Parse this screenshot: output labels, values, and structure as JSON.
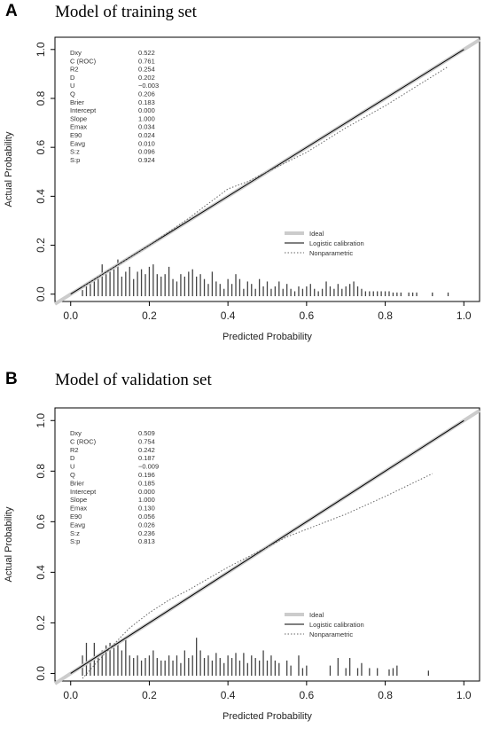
{
  "chart_data": [
    {
      "panel": "A",
      "title": "Model of training set",
      "type": "line",
      "xlabel": "Predicted Probability",
      "ylabel": "Actual Probability",
      "xlim": [
        -0.04,
        1.04
      ],
      "ylim": [
        -0.03,
        1.05
      ],
      "xticks": [
        "0.0",
        "0.2",
        "0.4",
        "0.6",
        "0.8",
        "1.0"
      ],
      "yticks": [
        "0.0",
        "0.2",
        "0.4",
        "0.6",
        "0.8",
        "1.0"
      ],
      "grid": false,
      "legend_position": "right-middle",
      "stats": [
        {
          "name": "Dxy",
          "value": "0.522"
        },
        {
          "name": "C (ROC)",
          "value": "0.761"
        },
        {
          "name": "R2",
          "value": "0.254"
        },
        {
          "name": "D",
          "value": "0.202"
        },
        {
          "name": "U",
          "value": "−0.003"
        },
        {
          "name": "Q",
          "value": "0.206"
        },
        {
          "name": "Brier",
          "value": "0.183"
        },
        {
          "name": "Intercept",
          "value": "0.000"
        },
        {
          "name": "Slope",
          "value": "1.000"
        },
        {
          "name": "Emax",
          "value": "0.034"
        },
        {
          "name": "E90",
          "value": "0.024"
        },
        {
          "name": "Eavg",
          "value": "0.010"
        },
        {
          "name": "S:z",
          "value": "0.096"
        },
        {
          "name": "S:p",
          "value": "0.924"
        }
      ],
      "series": [
        {
          "name": "Ideal",
          "style": "thick-gray",
          "color": "#cccccc",
          "x": [
            -0.04,
            1.04
          ],
          "y": [
            -0.04,
            1.04
          ]
        },
        {
          "name": "Logistic calibration",
          "style": "solid",
          "color": "#000000",
          "x": [
            0.0,
            1.0
          ],
          "y": [
            0.0,
            1.0
          ]
        },
        {
          "name": "Nonparametric",
          "style": "dotted",
          "color": "#666666",
          "x": [
            0.03,
            0.1,
            0.2,
            0.3,
            0.35,
            0.4,
            0.45,
            0.5,
            0.6,
            0.7,
            0.8,
            0.9,
            0.96
          ],
          "y": [
            0.03,
            0.1,
            0.2,
            0.31,
            0.37,
            0.43,
            0.46,
            0.5,
            0.58,
            0.68,
            0.77,
            0.87,
            0.93
          ]
        }
      ],
      "histogram": {
        "x": [
          0.03,
          0.04,
          0.05,
          0.06,
          0.07,
          0.08,
          0.09,
          0.1,
          0.11,
          0.12,
          0.13,
          0.14,
          0.15,
          0.16,
          0.17,
          0.18,
          0.19,
          0.2,
          0.21,
          0.22,
          0.23,
          0.24,
          0.25,
          0.26,
          0.27,
          0.28,
          0.29,
          0.3,
          0.31,
          0.32,
          0.33,
          0.34,
          0.35,
          0.36,
          0.37,
          0.38,
          0.39,
          0.4,
          0.41,
          0.42,
          0.43,
          0.44,
          0.45,
          0.46,
          0.47,
          0.48,
          0.49,
          0.5,
          0.51,
          0.52,
          0.53,
          0.54,
          0.55,
          0.56,
          0.57,
          0.58,
          0.59,
          0.6,
          0.61,
          0.62,
          0.63,
          0.64,
          0.65,
          0.66,
          0.67,
          0.68,
          0.69,
          0.7,
          0.71,
          0.72,
          0.73,
          0.74,
          0.75,
          0.76,
          0.77,
          0.78,
          0.79,
          0.8,
          0.81,
          0.82,
          0.83,
          0.84,
          0.86,
          0.87,
          0.88,
          0.92,
          0.96
        ],
        "h": [
          0.025,
          0.04,
          0.05,
          0.06,
          0.075,
          0.13,
          0.09,
          0.1,
          0.11,
          0.15,
          0.08,
          0.1,
          0.12,
          0.07,
          0.1,
          0.11,
          0.09,
          0.12,
          0.13,
          0.09,
          0.08,
          0.09,
          0.12,
          0.07,
          0.06,
          0.09,
          0.08,
          0.1,
          0.11,
          0.08,
          0.09,
          0.07,
          0.05,
          0.1,
          0.06,
          0.05,
          0.03,
          0.07,
          0.05,
          0.09,
          0.07,
          0.03,
          0.06,
          0.05,
          0.03,
          0.07,
          0.04,
          0.06,
          0.03,
          0.04,
          0.06,
          0.03,
          0.05,
          0.03,
          0.02,
          0.04,
          0.03,
          0.04,
          0.05,
          0.03,
          0.02,
          0.03,
          0.06,
          0.04,
          0.03,
          0.05,
          0.03,
          0.04,
          0.05,
          0.06,
          0.04,
          0.03,
          0.02,
          0.02,
          0.02,
          0.02,
          0.02,
          0.02,
          0.02,
          0.015,
          0.015,
          0.015,
          0.015,
          0.015,
          0.015,
          0.015,
          0.015
        ]
      }
    },
    {
      "panel": "B",
      "title": "Model of validation set",
      "type": "line",
      "xlabel": "Predicted Probability",
      "ylabel": "Actual Probability",
      "xlim": [
        -0.04,
        1.04
      ],
      "ylim": [
        -0.03,
        1.05
      ],
      "xticks": [
        "0.0",
        "0.2",
        "0.4",
        "0.6",
        "0.8",
        "1.0"
      ],
      "yticks": [
        "0.0",
        "0.2",
        "0.4",
        "0.6",
        "0.8",
        "1.0"
      ],
      "grid": false,
      "legend_position": "right-lower",
      "stats": [
        {
          "name": "Dxy",
          "value": "0.509"
        },
        {
          "name": "C (ROC)",
          "value": "0.754"
        },
        {
          "name": "R2",
          "value": "0.242"
        },
        {
          "name": "D",
          "value": "0.187"
        },
        {
          "name": "U",
          "value": "−0.009"
        },
        {
          "name": "Q",
          "value": "0.196"
        },
        {
          "name": "Brier",
          "value": "0.185"
        },
        {
          "name": "Intercept",
          "value": "0.000"
        },
        {
          "name": "Slope",
          "value": "1.000"
        },
        {
          "name": "Emax",
          "value": "0.130"
        },
        {
          "name": "E90",
          "value": "0.056"
        },
        {
          "name": "Eavg",
          "value": "0.026"
        },
        {
          "name": "S:z",
          "value": "0.236"
        },
        {
          "name": "S:p",
          "value": "0.813"
        }
      ],
      "series": [
        {
          "name": "Ideal",
          "style": "thick-gray",
          "color": "#cccccc",
          "x": [
            -0.04,
            1.04
          ],
          "y": [
            -0.04,
            1.04
          ]
        },
        {
          "name": "Logistic calibration",
          "style": "solid",
          "color": "#000000",
          "x": [
            0.0,
            1.0
          ],
          "y": [
            0.0,
            1.0
          ]
        },
        {
          "name": "Nonparametric",
          "style": "dotted",
          "color": "#666666",
          "x": [
            0.03,
            0.07,
            0.1,
            0.15,
            0.2,
            0.25,
            0.3,
            0.4,
            0.5,
            0.55,
            0.6,
            0.7,
            0.8,
            0.92
          ],
          "y": [
            -0.02,
            0.05,
            0.1,
            0.18,
            0.24,
            0.29,
            0.33,
            0.42,
            0.5,
            0.54,
            0.57,
            0.63,
            0.7,
            0.79
          ]
        }
      ],
      "histogram": {
        "x": [
          0.03,
          0.04,
          0.05,
          0.06,
          0.07,
          0.08,
          0.09,
          0.1,
          0.11,
          0.12,
          0.13,
          0.14,
          0.15,
          0.16,
          0.17,
          0.18,
          0.19,
          0.2,
          0.21,
          0.22,
          0.23,
          0.24,
          0.25,
          0.26,
          0.27,
          0.28,
          0.29,
          0.3,
          0.31,
          0.32,
          0.33,
          0.34,
          0.35,
          0.36,
          0.37,
          0.38,
          0.39,
          0.4,
          0.41,
          0.42,
          0.43,
          0.44,
          0.45,
          0.46,
          0.47,
          0.48,
          0.49,
          0.5,
          0.51,
          0.52,
          0.53,
          0.55,
          0.56,
          0.58,
          0.59,
          0.6,
          0.66,
          0.68,
          0.7,
          0.71,
          0.73,
          0.74,
          0.76,
          0.78,
          0.81,
          0.82,
          0.83,
          0.91
        ],
        "h": [
          0.08,
          0.13,
          0.06,
          0.13,
          0.08,
          0.1,
          0.12,
          0.13,
          0.11,
          0.13,
          0.1,
          0.15,
          0.08,
          0.07,
          0.08,
          0.06,
          0.07,
          0.08,
          0.1,
          0.07,
          0.06,
          0.06,
          0.08,
          0.06,
          0.08,
          0.05,
          0.1,
          0.07,
          0.08,
          0.15,
          0.1,
          0.07,
          0.08,
          0.06,
          0.09,
          0.07,
          0.05,
          0.08,
          0.07,
          0.09,
          0.06,
          0.09,
          0.05,
          0.08,
          0.07,
          0.06,
          0.1,
          0.06,
          0.08,
          0.06,
          0.05,
          0.06,
          0.04,
          0.08,
          0.03,
          0.04,
          0.04,
          0.07,
          0.03,
          0.07,
          0.03,
          0.05,
          0.03,
          0.03,
          0.025,
          0.03,
          0.04,
          0.02
        ]
      }
    }
  ]
}
